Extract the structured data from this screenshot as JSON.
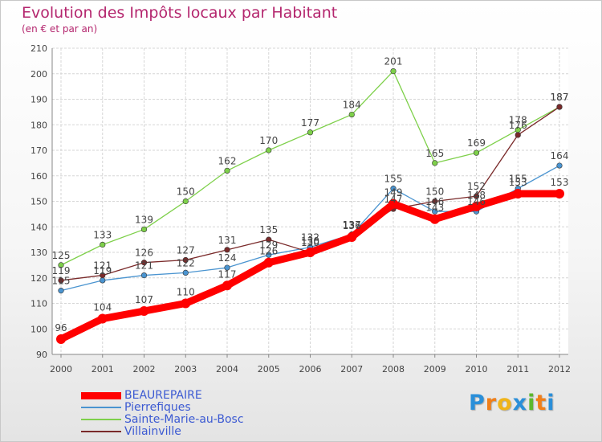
{
  "title": "Evolution des Impôts locaux par Habitant",
  "subtitle": "(en € et par an)",
  "logo": {
    "letters": [
      "P",
      "r",
      "o",
      "x",
      "i",
      "t",
      "i"
    ],
    "colors": [
      "#2a8fd9",
      "#f07f1a",
      "#f0b41a",
      "#2a8fd9",
      "#5cb82e",
      "#f07f1a",
      "#2a8fd9"
    ]
  },
  "chart_data": {
    "type": "line",
    "title": "Evolution des Impôts locaux par Habitant",
    "subtitle": "(en € et par an)",
    "xlabel": "",
    "ylabel": "",
    "x": [
      "2000",
      "2001",
      "2002",
      "2003",
      "2004",
      "2005",
      "2006",
      "2007",
      "2008",
      "2009",
      "2010",
      "2011",
      "2012"
    ],
    "ylim": [
      90,
      210
    ],
    "yticks": [
      90,
      100,
      110,
      120,
      130,
      140,
      150,
      160,
      170,
      180,
      190,
      200,
      210
    ],
    "grid": true,
    "legend_position": "bottom-left",
    "series": [
      {
        "name": "BEAUREPAIRE",
        "color": "#ff0000",
        "thick": true,
        "values": [
          96,
          104,
          107,
          110,
          117,
          126,
          130,
          136,
          149,
          143,
          148,
          153,
          153
        ],
        "labels": [
          "96",
          "104",
          "107",
          "110",
          "117",
          "126",
          "130",
          "136",
          "149",
          "143",
          "148",
          "153",
          "153"
        ]
      },
      {
        "name": "Pierrefiques",
        "color": "#4a94d0",
        "thick": false,
        "values": [
          115,
          119,
          121,
          122,
          124,
          129,
          132,
          137,
          155,
          146,
          146,
          155,
          164
        ],
        "labels": [
          "115",
          "119",
          "121",
          "122",
          "124",
          "129",
          "132",
          "137",
          "155",
          "146",
          "146",
          "155",
          "164"
        ]
      },
      {
        "name": "Sainte-Marie-au-Bosc",
        "color": "#7ed04a",
        "thick": false,
        "values": [
          125,
          133,
          139,
          150,
          162,
          170,
          177,
          184,
          201,
          165,
          169,
          178,
          187
        ],
        "labels": [
          "125",
          "133",
          "139",
          "150",
          "162",
          "170",
          "177",
          "184",
          "201",
          "165",
          "169",
          "178",
          "187"
        ]
      },
      {
        "name": "Villainville",
        "color": "#7a2a2a",
        "thick": false,
        "values": [
          119,
          121,
          126,
          127,
          131,
          135,
          130,
          137,
          147,
          150,
          152,
          176,
          187
        ],
        "labels": [
          "119",
          "121",
          "126",
          "127",
          "131",
          "135",
          "130",
          "137",
          "147",
          "150",
          "152",
          "176",
          "187"
        ]
      }
    ]
  }
}
